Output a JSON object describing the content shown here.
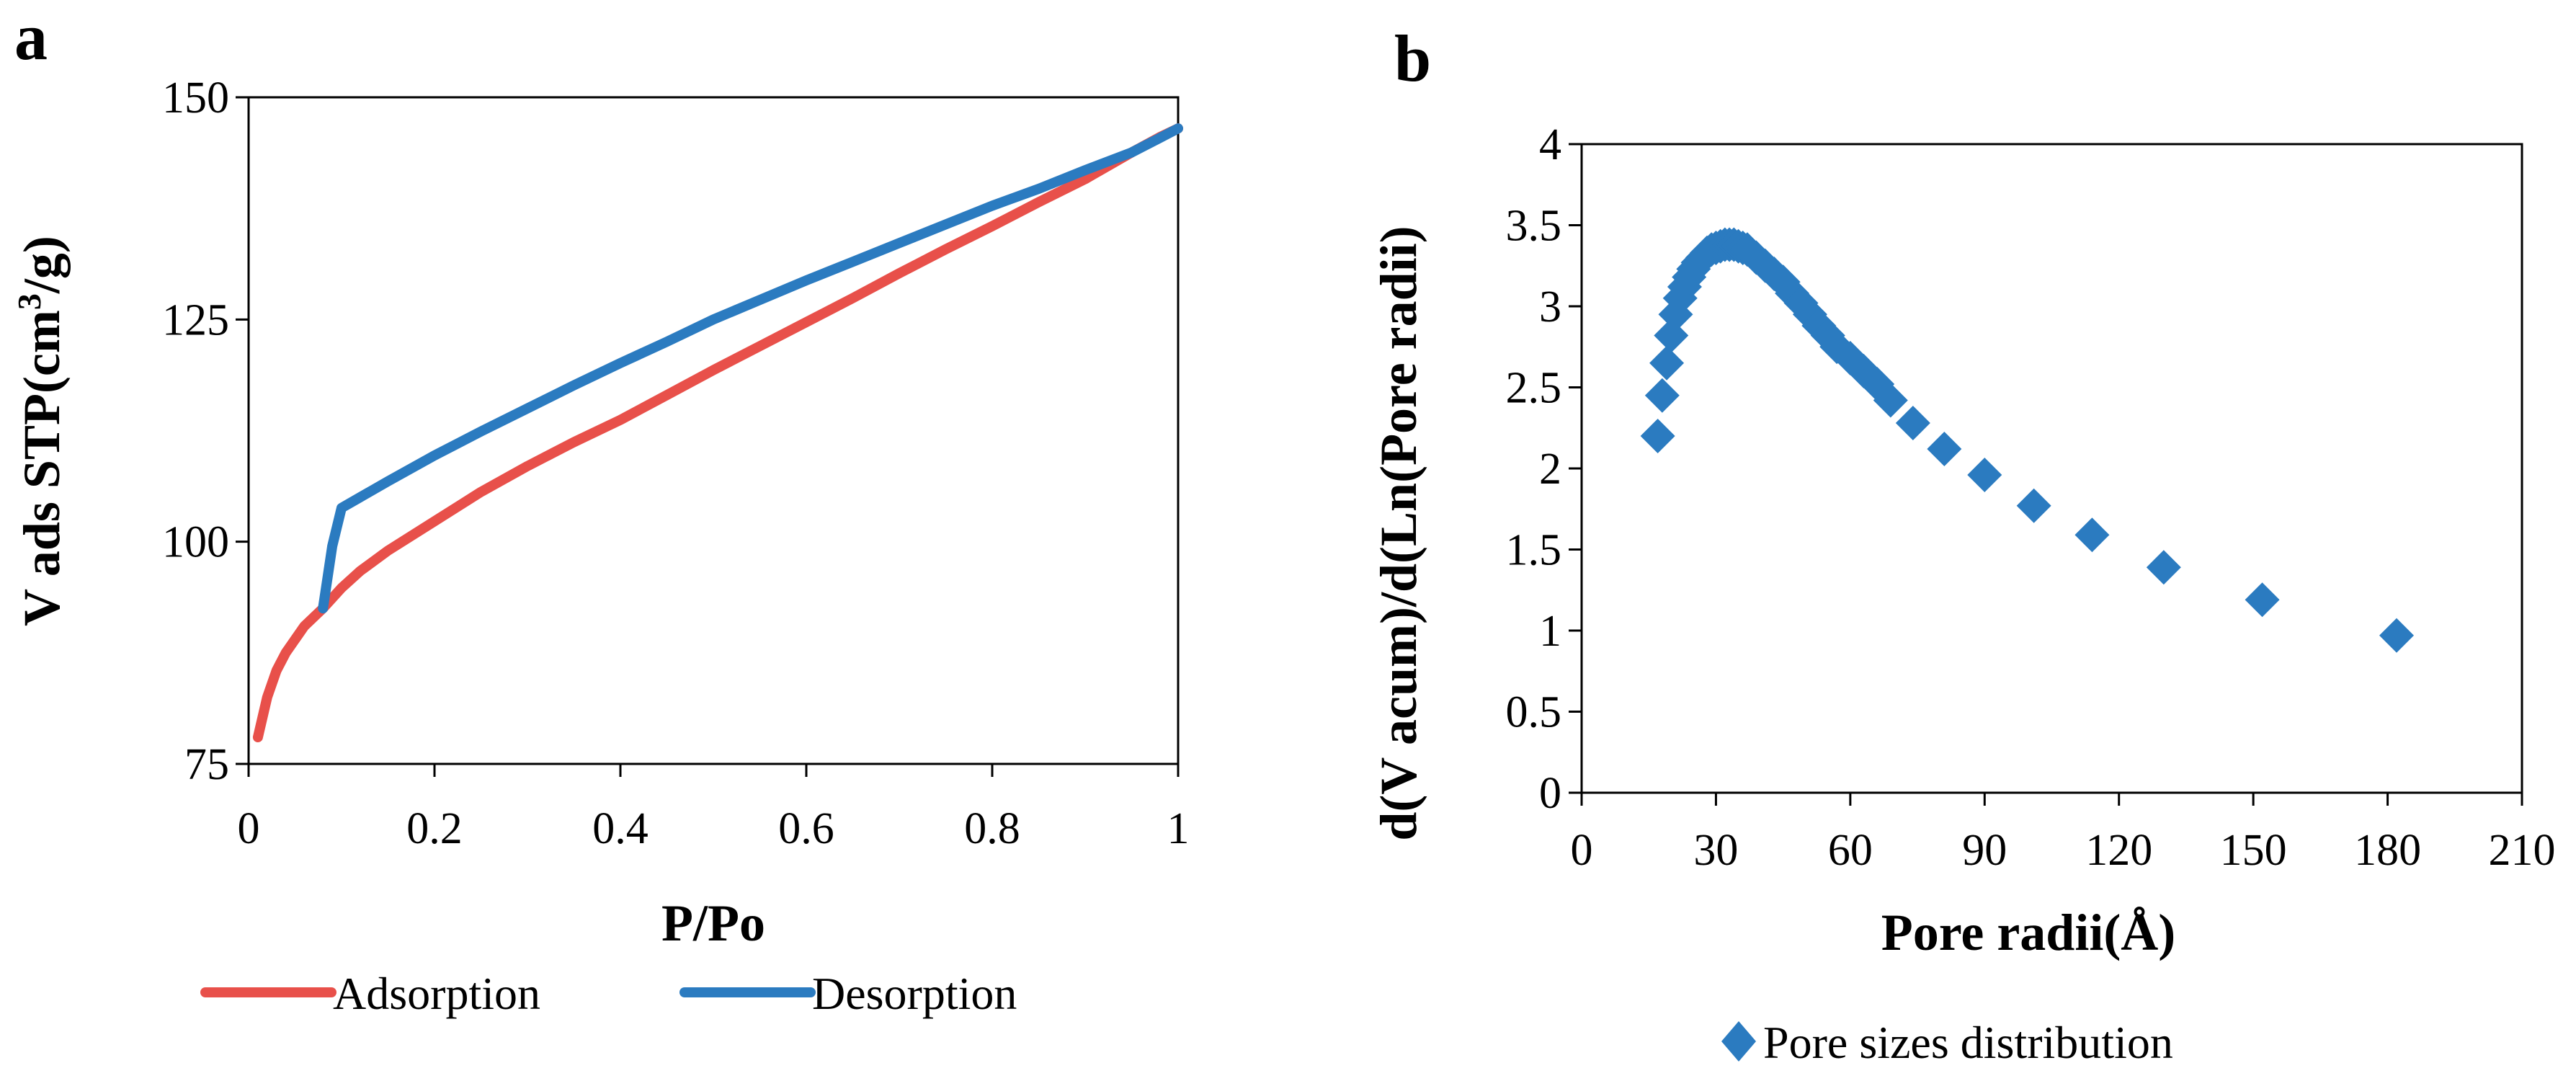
{
  "chart_data": [
    {
      "panel": "a",
      "type": "line",
      "xlabel": "P/Po",
      "ylabel_main": "V ads STP(cm",
      "ylabel_sup": "3",
      "ylabel_tail": "/g)",
      "xlim": [
        0,
        1
      ],
      "ylim": [
        75,
        150
      ],
      "xticks": [
        0,
        0.2,
        0.4,
        0.6,
        0.8,
        1
      ],
      "xtick_labels": [
        "0",
        "0.2",
        "0.4",
        "0.6",
        "0.8",
        "1"
      ],
      "yticks": [
        75,
        100,
        125,
        150
      ],
      "ytick_labels": [
        "75",
        "100",
        "125",
        "150"
      ],
      "legend_position": "bottom",
      "series": [
        {
          "name": "Adsorption",
          "color": "#e8504a",
          "x": [
            0.01,
            0.02,
            0.03,
            0.04,
            0.05,
            0.06,
            0.08,
            0.1,
            0.12,
            0.15,
            0.2,
            0.25,
            0.3,
            0.35,
            0.4,
            0.45,
            0.5,
            0.55,
            0.6,
            0.65,
            0.7,
            0.75,
            0.8,
            0.85,
            0.9,
            0.95,
            0.98,
            1.0
          ],
          "y": [
            78,
            82.5,
            85.5,
            87.5,
            89,
            90.5,
            92.5,
            94.8,
            96.7,
            99,
            102.3,
            105.6,
            108.5,
            111.2,
            113.7,
            116.5,
            119.3,
            122,
            124.7,
            127.4,
            130.2,
            132.9,
            135.5,
            138.2,
            140.8,
            143.8,
            145.5,
            146.5
          ]
        },
        {
          "name": "Desorption",
          "color": "#2b7bc0",
          "x": [
            0.08,
            0.09,
            0.1,
            0.12,
            0.15,
            0.2,
            0.25,
            0.3,
            0.35,
            0.4,
            0.45,
            0.5,
            0.55,
            0.6,
            0.65,
            0.7,
            0.75,
            0.8,
            0.85,
            0.9,
            0.95,
            0.98,
            1.0
          ],
          "y": [
            92.5,
            99.5,
            103.8,
            105,
            106.8,
            109.7,
            112.4,
            115,
            117.6,
            120.1,
            122.5,
            125,
            127.2,
            129.4,
            131.5,
            133.6,
            135.7,
            137.8,
            139.7,
            141.8,
            143.8,
            145.4,
            146.5
          ]
        }
      ]
    },
    {
      "panel": "b",
      "type": "scatter",
      "xlabel": "Pore radii(Å)",
      "ylabel": "d(V acum)/d(Ln(Pore radii)",
      "xlim": [
        0,
        210
      ],
      "ylim": [
        0,
        4
      ],
      "xticks": [
        0,
        30,
        60,
        90,
        120,
        150,
        180,
        210
      ],
      "xtick_labels": [
        "0",
        "30",
        "60",
        "90",
        "120",
        "150",
        "180",
        "210"
      ],
      "yticks": [
        0,
        0.5,
        1,
        1.5,
        2,
        2.5,
        3,
        3.5,
        4
      ],
      "ytick_labels": [
        "0",
        "0.5",
        "1",
        "1.5",
        "2",
        "2.5",
        "3",
        "3.5",
        "4"
      ],
      "legend_position": "bottom",
      "series": [
        {
          "name": "Pore sizes distribution",
          "color": "#2b7bc0",
          "marker": "diamond",
          "x": [
            17,
            18,
            19,
            20,
            21,
            22,
            23,
            24,
            25,
            26,
            27,
            28,
            29,
            30,
            31,
            32,
            33,
            34,
            35,
            36,
            37,
            39,
            41,
            43,
            45,
            47,
            49,
            51,
            53,
            55,
            57,
            60,
            63,
            66,
            69,
            74,
            81,
            90,
            101,
            114,
            130,
            152,
            182
          ],
          "y": [
            2.2,
            2.45,
            2.65,
            2.82,
            2.95,
            3.05,
            3.12,
            3.18,
            3.23,
            3.27,
            3.3,
            3.33,
            3.35,
            3.36,
            3.37,
            3.38,
            3.38,
            3.38,
            3.37,
            3.36,
            3.35,
            3.3,
            3.25,
            3.2,
            3.15,
            3.08,
            3.02,
            2.95,
            2.88,
            2.82,
            2.75,
            2.68,
            2.6,
            2.52,
            2.42,
            2.28,
            2.12,
            1.96,
            1.77,
            1.59,
            1.39,
            1.19,
            0.97
          ]
        }
      ]
    }
  ]
}
